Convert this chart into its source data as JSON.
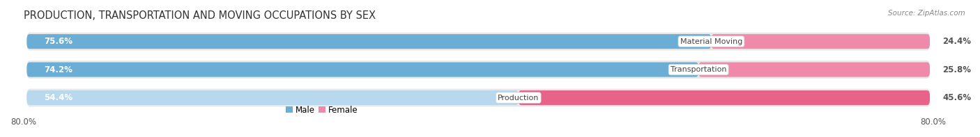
{
  "title": "PRODUCTION, TRANSPORTATION AND MOVING OCCUPATIONS BY SEX",
  "source": "Source: ZipAtlas.com",
  "categories": [
    "Material Moving",
    "Transportation",
    "Production"
  ],
  "male_values": [
    75.6,
    74.2,
    54.4
  ],
  "female_values": [
    24.4,
    25.8,
    45.6
  ],
  "male_color_strong": "#6aaed6",
  "male_color_light": "#b8d8ee",
  "female_color_strong": "#f08aaa",
  "female_color_production": "#e8638a",
  "bar_bg_color": "#e8e8e8",
  "row_bg_color": "#f0f0f0",
  "total_width": 80.0,
  "label_fontsize": 8.5,
  "title_fontsize": 10.5,
  "figsize": [
    14.06,
    1.97
  ],
  "dpi": 100
}
